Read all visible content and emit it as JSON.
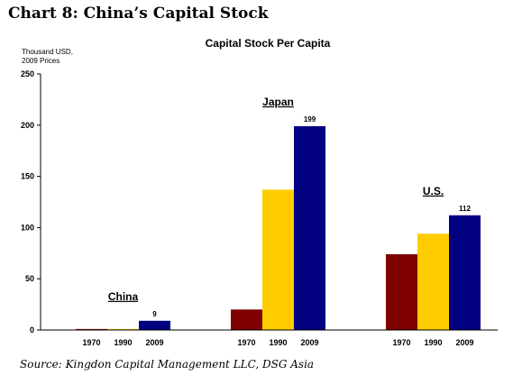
{
  "page": {
    "title": "Chart 8:  China’s Capital Stock",
    "source": "Source: Kingdon Capital Management  LLC, DSG Asia"
  },
  "chart_data": {
    "type": "bar",
    "title": "Capital Stock Per Capita",
    "ylabel": "Thousand USD,\n2009 Prices",
    "ylim": [
      0,
      250
    ],
    "yticks": [
      0,
      50,
      100,
      150,
      200,
      250
    ],
    "groups": [
      {
        "name": "China",
        "categories": [
          "1970",
          "1990",
          "2009"
        ],
        "values": [
          1,
          1,
          9
        ],
        "value_labels": [
          "",
          "",
          "9"
        ]
      },
      {
        "name": "Japan",
        "categories": [
          "1970",
          "1990",
          "2009"
        ],
        "values": [
          20,
          137,
          199
        ],
        "value_labels": [
          "",
          "",
          "199"
        ]
      },
      {
        "name": "U.S.",
        "categories": [
          "1970",
          "1990",
          "2009"
        ],
        "values": [
          74,
          94,
          112
        ],
        "value_labels": [
          "",
          "",
          "112"
        ]
      }
    ],
    "colors": [
      "#7f0000",
      "#ffcc00",
      "#000080"
    ],
    "grid": false,
    "legend": "none"
  }
}
